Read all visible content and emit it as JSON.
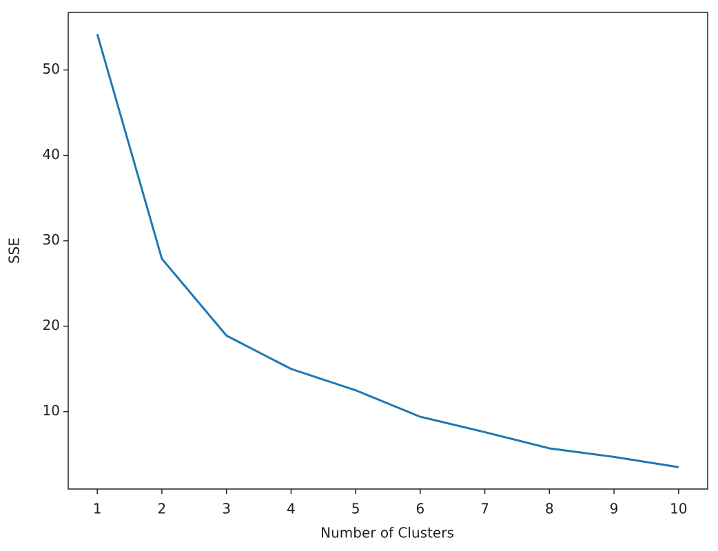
{
  "chart_data": {
    "type": "line",
    "x_label": "Number of Clusters",
    "y_label": "SSE",
    "x": [
      1,
      2,
      3,
      4,
      5,
      6,
      7,
      8,
      9,
      10
    ],
    "series": [
      {
        "color": "#1f77b4",
        "values": [
          54.2,
          27.9,
          18.9,
          15.0,
          12.5,
          9.4,
          7.6,
          5.7,
          4.7,
          3.5
        ]
      }
    ],
    "xlim": [
      0.55,
      10.45
    ],
    "ylim": [
      0.94,
      56.74
    ],
    "xticks": [
      1,
      2,
      3,
      4,
      5,
      6,
      7,
      8,
      9,
      10
    ],
    "yticks": [
      10,
      20,
      30,
      40,
      50
    ],
    "grid": false
  }
}
